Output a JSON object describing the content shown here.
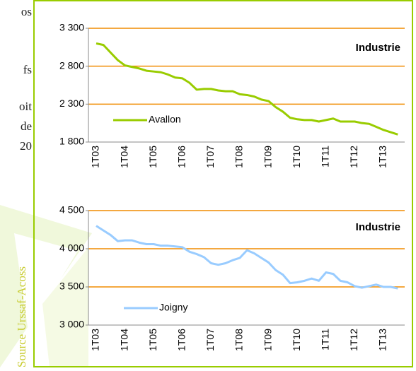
{
  "side_text": [
    "os",
    "fs",
    "oit",
    "de",
    "20"
  ],
  "source": "Source Urssaf-Acoss",
  "chart_data": [
    {
      "type": "line",
      "annotation": "Industrie",
      "categories": [
        "1T03",
        null,
        null,
        null,
        "1T04",
        null,
        null,
        null,
        "1T05",
        null,
        null,
        null,
        "1T06",
        null,
        null,
        null,
        "1T07",
        null,
        null,
        null,
        "1T08",
        null,
        null,
        null,
        "1T09",
        null,
        null,
        null,
        "1T10",
        null,
        null,
        null,
        "1T11",
        null,
        null,
        null,
        "1T12",
        null,
        null,
        null,
        "1T13",
        null,
        null
      ],
      "series": [
        {
          "name": "Avallon",
          "color": "#99cc00",
          "values": [
            3100,
            3080,
            2980,
            2880,
            2810,
            2790,
            2770,
            2740,
            2730,
            2720,
            2690,
            2650,
            2640,
            2580,
            2490,
            2500,
            2500,
            2480,
            2470,
            2470,
            2430,
            2420,
            2400,
            2360,
            2340,
            2260,
            2200,
            2120,
            2100,
            2090,
            2090,
            2070,
            2090,
            2110,
            2070,
            2070,
            2070,
            2050,
            2040,
            2000,
            1960,
            1930,
            1900
          ]
        }
      ],
      "ylim": [
        1800,
        3300
      ],
      "yticks": [
        {
          "value": 1800,
          "label": "1 800"
        },
        {
          "value": 2300,
          "label": "2 300"
        },
        {
          "value": 2800,
          "label": "2 800"
        },
        {
          "value": 3300,
          "label": "3 300"
        }
      ],
      "grid": true,
      "grid_color": "#f08c00"
    },
    {
      "type": "line",
      "annotation": "Industrie",
      "categories": [
        "1T03",
        null,
        null,
        null,
        "1T04",
        null,
        null,
        null,
        "1T05",
        null,
        null,
        null,
        "1T06",
        null,
        null,
        null,
        "1T07",
        null,
        null,
        null,
        "1T08",
        null,
        null,
        null,
        "1T09",
        null,
        null,
        null,
        "1T10",
        null,
        null,
        null,
        "1T11",
        null,
        null,
        null,
        "1T12",
        null,
        null,
        null,
        "1T13",
        null,
        null
      ],
      "series": [
        {
          "name": "Joigny",
          "color": "#99ccff",
          "values": [
            4300,
            4240,
            4180,
            4100,
            4110,
            4110,
            4080,
            4060,
            4060,
            4040,
            4040,
            4030,
            4020,
            3960,
            3930,
            3890,
            3810,
            3790,
            3810,
            3850,
            3880,
            3980,
            3940,
            3880,
            3820,
            3720,
            3660,
            3550,
            3560,
            3580,
            3610,
            3580,
            3690,
            3670,
            3580,
            3560,
            3510,
            3490,
            3510,
            3530,
            3500,
            3500,
            3480
          ]
        }
      ],
      "ylim": [
        3000,
        4500
      ],
      "yticks": [
        {
          "value": 3000,
          "label": "3 000"
        },
        {
          "value": 3500,
          "label": "3 500"
        },
        {
          "value": 4000,
          "label": "4 000"
        },
        {
          "value": 4500,
          "label": "4 500"
        }
      ],
      "grid": true,
      "grid_color": "#f08c00"
    }
  ]
}
